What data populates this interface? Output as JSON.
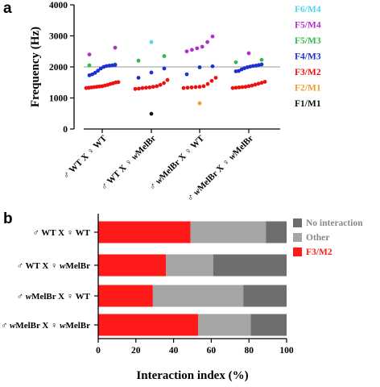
{
  "panel_a_label": "a",
  "panel_b_label": "b",
  "chart_data": [
    {
      "type": "scatter",
      "ylabel": "Frequency (Hz)",
      "ylim": [
        0,
        4000
      ],
      "yticks": [
        "0",
        "1000",
        "2000",
        "3000",
        "4000"
      ],
      "reference_line_y": 2000,
      "categories": [
        "♂ WT X ♀ WT",
        "♂ WT X ♀ wMelBr",
        "♂ wMelBr X ♀ WT",
        "♂ wMelBr X ♀ wMelBr"
      ],
      "legend": [
        {
          "name": "F6/M4",
          "color": "#4fd6f0"
        },
        {
          "name": "F5/M4",
          "color": "#b030c8"
        },
        {
          "name": "F5/M3",
          "color": "#34b84a"
        },
        {
          "name": "F4/M3",
          "color": "#1f2fd0"
        },
        {
          "name": "F3/M2",
          "color": "#ee1111"
        },
        {
          "name": "F2/M1",
          "color": "#f59a2a"
        },
        {
          "name": "F1/M1",
          "color": "#111111"
        }
      ],
      "series": [
        {
          "name": "F6/M4",
          "color": "#4fd6f0",
          "points": [
            {
              "c": 1,
              "y": 2800
            }
          ]
        },
        {
          "name": "F5/M4",
          "color": "#b030c8",
          "points": [
            {
              "c": 0,
              "y": 2620
            },
            {
              "c": 0,
              "y": 2400
            },
            {
              "c": 2,
              "y": 2980
            },
            {
              "c": 2,
              "y": 2800
            },
            {
              "c": 2,
              "y": 2650
            },
            {
              "c": 2,
              "y": 2600
            },
            {
              "c": 2,
              "y": 2550
            },
            {
              "c": 2,
              "y": 2500
            },
            {
              "c": 3,
              "y": 2440
            }
          ]
        },
        {
          "name": "F5/M3",
          "color": "#34b84a",
          "points": [
            {
              "c": 0,
              "y": 2080
            },
            {
              "c": 0,
              "y": 2050
            },
            {
              "c": 1,
              "y": 2350
            },
            {
              "c": 1,
              "y": 2200
            },
            {
              "c": 3,
              "y": 2230
            },
            {
              "c": 3,
              "y": 2150
            }
          ]
        },
        {
          "name": "F4/M3",
          "color": "#1f2fd0",
          "points": [
            {
              "c": 0,
              "y": 2060
            },
            {
              "c": 0,
              "y": 2050
            },
            {
              "c": 0,
              "y": 2040
            },
            {
              "c": 0,
              "y": 2030
            },
            {
              "c": 0,
              "y": 2000
            },
            {
              "c": 0,
              "y": 1950
            },
            {
              "c": 0,
              "y": 1880
            },
            {
              "c": 0,
              "y": 1810
            },
            {
              "c": 0,
              "y": 1760
            },
            {
              "c": 0,
              "y": 1730
            },
            {
              "c": 1,
              "y": 1950
            },
            {
              "c": 1,
              "y": 1820
            },
            {
              "c": 1,
              "y": 1650
            },
            {
              "c": 2,
              "y": 2020
            },
            {
              "c": 2,
              "y": 1990
            },
            {
              "c": 2,
              "y": 1760
            },
            {
              "c": 3,
              "y": 2080
            },
            {
              "c": 3,
              "y": 2060
            },
            {
              "c": 3,
              "y": 2040
            },
            {
              "c": 3,
              "y": 2030
            },
            {
              "c": 3,
              "y": 2010
            },
            {
              "c": 3,
              "y": 1990
            },
            {
              "c": 3,
              "y": 1960
            },
            {
              "c": 3,
              "y": 1920
            },
            {
              "c": 3,
              "y": 1870
            },
            {
              "c": 3,
              "y": 1860
            }
          ]
        },
        {
          "name": "F3/M2",
          "color": "#ee1111",
          "points": [
            {
              "c": 0,
              "y": 1510
            },
            {
              "c": 0,
              "y": 1500
            },
            {
              "c": 0,
              "y": 1470
            },
            {
              "c": 0,
              "y": 1450
            },
            {
              "c": 0,
              "y": 1420
            },
            {
              "c": 0,
              "y": 1400
            },
            {
              "c": 0,
              "y": 1380
            },
            {
              "c": 0,
              "y": 1370
            },
            {
              "c": 0,
              "y": 1360
            },
            {
              "c": 0,
              "y": 1350
            },
            {
              "c": 0,
              "y": 1340
            },
            {
              "c": 0,
              "y": 1330
            },
            {
              "c": 0,
              "y": 1320
            },
            {
              "c": 1,
              "y": 1580
            },
            {
              "c": 1,
              "y": 1480
            },
            {
              "c": 1,
              "y": 1420
            },
            {
              "c": 1,
              "y": 1380
            },
            {
              "c": 1,
              "y": 1360
            },
            {
              "c": 1,
              "y": 1340
            },
            {
              "c": 1,
              "y": 1330
            },
            {
              "c": 1,
              "y": 1320
            },
            {
              "c": 1,
              "y": 1300
            },
            {
              "c": 1,
              "y": 1290
            },
            {
              "c": 2,
              "y": 1650
            },
            {
              "c": 2,
              "y": 1550
            },
            {
              "c": 2,
              "y": 1450
            },
            {
              "c": 2,
              "y": 1380
            },
            {
              "c": 2,
              "y": 1360
            },
            {
              "c": 2,
              "y": 1350
            },
            {
              "c": 2,
              "y": 1340
            },
            {
              "c": 2,
              "y": 1330
            },
            {
              "c": 2,
              "y": 1320
            },
            {
              "c": 3,
              "y": 1520
            },
            {
              "c": 3,
              "y": 1490
            },
            {
              "c": 3,
              "y": 1460
            },
            {
              "c": 3,
              "y": 1430
            },
            {
              "c": 3,
              "y": 1400
            },
            {
              "c": 3,
              "y": 1380
            },
            {
              "c": 3,
              "y": 1360
            },
            {
              "c": 3,
              "y": 1350
            },
            {
              "c": 3,
              "y": 1340
            },
            {
              "c": 3,
              "y": 1330
            },
            {
              "c": 3,
              "y": 1320
            }
          ]
        },
        {
          "name": "F2/M1",
          "color": "#f59a2a",
          "points": [
            {
              "c": 2,
              "y": 830
            }
          ]
        },
        {
          "name": "F1/M1",
          "color": "#111111",
          "points": [
            {
              "c": 1,
              "y": 490
            }
          ]
        }
      ]
    },
    {
      "type": "bar",
      "orientation": "horizontal",
      "stacked": true,
      "xlabel": "Interaction index (%)",
      "xlim": [
        0,
        100
      ],
      "xticks": [
        "0",
        "20",
        "40",
        "60",
        "80",
        "100"
      ],
      "categories": [
        "♂ WT X ♀ WT",
        "♂ WT X ♀ wMelBr",
        "♂ wMelBr X ♀ WT",
        "♂ wMelBr X ♀ wMelBr"
      ],
      "legend_position": "top-right",
      "series": [
        {
          "name": "F3/M2",
          "color": "#ff1a1a",
          "values": [
            49,
            36,
            29,
            53
          ]
        },
        {
          "name": "Other",
          "color": "#a5a5a5",
          "values": [
            40,
            25,
            48,
            28
          ]
        },
        {
          "name": "No interaction",
          "color": "#6e6e6e",
          "values": [
            11,
            39,
            23,
            19
          ]
        }
      ]
    }
  ]
}
